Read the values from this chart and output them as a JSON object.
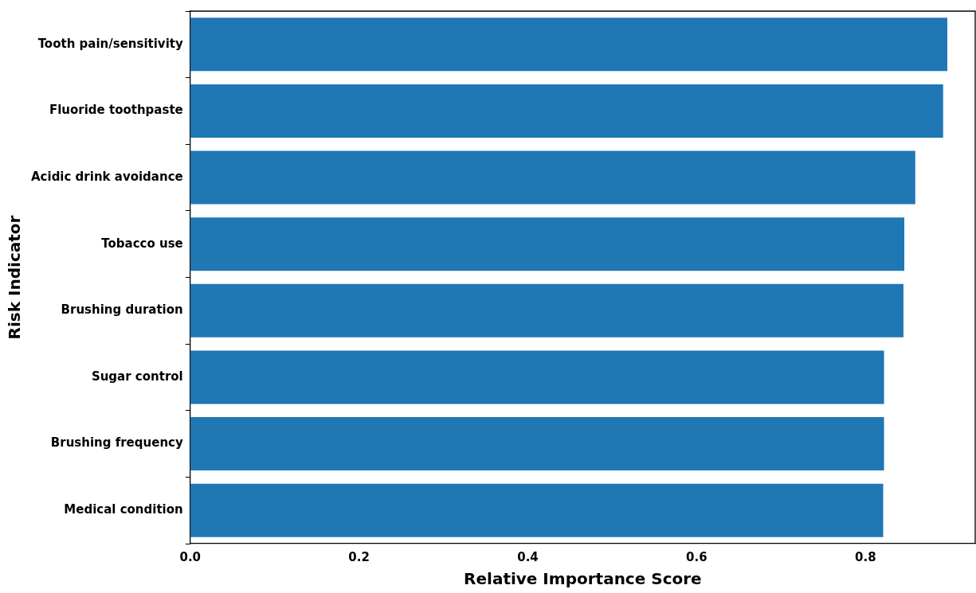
{
  "chart_data": {
    "type": "bar",
    "orientation": "horizontal",
    "xlabel": "Relative Importance Score",
    "ylabel": "Risk Indicator",
    "categories": [
      "Tooth pain/sensitivity",
      "Fluoride toothpaste",
      "Acidic drink avoidance",
      "Tobacco use",
      "Brushing duration",
      "Sugar control",
      "Brushing frequency",
      "Medical condition"
    ],
    "values": [
      0.897,
      0.892,
      0.859,
      0.846,
      0.845,
      0.822,
      0.822,
      0.821
    ],
    "color": "#1f77b4",
    "xlim": [
      0,
      0.93
    ],
    "xticks": [
      {
        "value": 0,
        "label": "0.0"
      },
      0.2,
      0.4,
      0.6,
      0.8
    ],
    "grid": false,
    "legend": false
  }
}
